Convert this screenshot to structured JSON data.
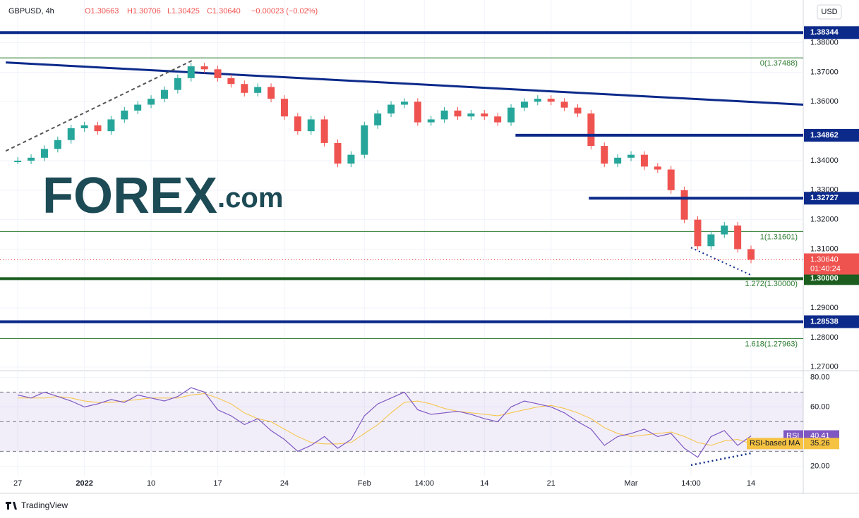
{
  "header": {
    "symbol": "GBPUSD, 4h",
    "open": "O1.30663",
    "high": "H1.30706",
    "low": "L1.30425",
    "close": "C1.30640",
    "change": "−0.00023 (−0.02%)"
  },
  "currency": "USD",
  "logo": {
    "brand": "FOREX",
    "suffix": ".com"
  },
  "footer": "TradingView",
  "chart_data": [
    {
      "type": "candlestick",
      "x": [
        0,
        6,
        12,
        18,
        24,
        30,
        36,
        42,
        48,
        54,
        60,
        66,
        72,
        78,
        84,
        90,
        96,
        102,
        108,
        114,
        120,
        126,
        132,
        138,
        144,
        150,
        156,
        162,
        168,
        174,
        180,
        186,
        192,
        198,
        204,
        210,
        216,
        222,
        228,
        234,
        240,
        246,
        252,
        258,
        264,
        270,
        276,
        282,
        288,
        294,
        300,
        306,
        312,
        318,
        324,
        330
      ],
      "series": [
        {
          "name": "GBPUSD",
          "values": [
            1.34,
            1.341,
            1.344,
            1.347,
            1.351,
            1.352,
            1.35,
            1.354,
            1.357,
            1.359,
            1.361,
            1.364,
            1.368,
            1.372,
            1.371,
            1.368,
            1.366,
            1.363,
            1.365,
            1.361,
            1.355,
            1.35,
            1.354,
            1.346,
            1.339,
            1.342,
            1.352,
            1.356,
            1.359,
            1.36,
            1.353,
            1.354,
            1.357,
            1.355,
            1.356,
            1.355,
            1.353,
            1.358,
            1.36,
            1.361,
            1.36,
            1.358,
            1.356,
            1.345,
            1.339,
            1.341,
            1.342,
            1.338,
            1.337,
            1.33,
            1.32,
            1.311,
            1.315,
            1.318,
            1.31,
            1.3064
          ]
        }
      ],
      "up_color": "#26a69a",
      "down_color": "#ef5350",
      "xlim": [
        -8,
        353.5
      ],
      "ylim": [
        1.269,
        1.3945
      ],
      "xticks": [
        {
          "value": 0,
          "label": "27"
        },
        {
          "value": 30,
          "label": "2022"
        },
        {
          "value": 60,
          "label": "10"
        },
        {
          "value": 90,
          "label": "17"
        },
        {
          "value": 120,
          "label": "24"
        },
        {
          "value": 156,
          "label": "Feb"
        },
        {
          "value": 183,
          "label": "14:00"
        },
        {
          "value": 210,
          "label": "14"
        },
        {
          "value": 240,
          "label": "21"
        },
        {
          "value": 276,
          "label": "Mar"
        },
        {
          "value": 303,
          "label": "14:00"
        },
        {
          "value": 330,
          "label": "14"
        }
      ],
      "yticks": [
        {
          "value": 1.27,
          "label": "1.27000"
        },
        {
          "value": 1.28,
          "label": "1.28000"
        },
        {
          "value": 1.29,
          "label": "1.29000"
        },
        {
          "value": 1.31,
          "label": "1.31000"
        },
        {
          "value": 1.32,
          "label": "1.32000"
        },
        {
          "value": 1.33,
          "label": "1.33000"
        },
        {
          "value": 1.34,
          "label": "1.34000"
        },
        {
          "value": 1.36,
          "label": "1.36000"
        },
        {
          "value": 1.37,
          "label": "1.37000"
        },
        {
          "value": 1.38,
          "label": "1.38000"
        }
      ],
      "levels": [
        {
          "value": 1.38344,
          "label": "1.38344",
          "color": "#0c2a8a"
        },
        {
          "value": 1.34862,
          "label": "1.34862",
          "color": "#0c2a8a",
          "x_start": 224
        },
        {
          "value": 1.32727,
          "label": "1.32727",
          "color": "#0c2a8a",
          "x_start": 257
        },
        {
          "value": 1.28538,
          "label": "1.28538",
          "color": "#0c2a8a"
        },
        {
          "value": 1.3,
          "label": "1.30000",
          "color": "#1b5e20"
        }
      ],
      "fib_levels": [
        {
          "value": 1.37488,
          "label": "0(1.37488)"
        },
        {
          "value": 1.31601,
          "label": "1(1.31601)"
        },
        {
          "value": 1.3,
          "label": "1.272(1.30000)"
        },
        {
          "value": 1.27963,
          "label": "1.618(1.27963)"
        }
      ],
      "fib_color": "#2e7d32",
      "trendlines": [
        {
          "x": [
            -5.4,
            353.5
          ],
          "y": [
            1.3733,
            1.359
          ],
          "color": "#0c2a8a",
          "style": "solid"
        },
        {
          "x": [
            -5.4,
            79.4
          ],
          "y": [
            1.3433,
            1.3743
          ],
          "color": "#555555",
          "style": "dashed"
        },
        {
          "x": [
            303,
            330
          ],
          "y": [
            1.3105,
            1.3012
          ],
          "color": "#0c2a8a",
          "style": "dotted"
        }
      ],
      "last_price": {
        "value": 1.3064,
        "label": "1.30640",
        "countdown": "01:40:24",
        "color": "#ef5350"
      }
    },
    {
      "type": "line",
      "x": [
        0,
        6,
        12,
        18,
        24,
        30,
        36,
        42,
        48,
        54,
        60,
        66,
        72,
        78,
        84,
        90,
        96,
        102,
        108,
        114,
        120,
        126,
        132,
        138,
        144,
        150,
        156,
        162,
        168,
        174,
        180,
        186,
        192,
        198,
        204,
        210,
        216,
        222,
        228,
        234,
        240,
        246,
        252,
        258,
        264,
        270,
        276,
        282,
        288,
        294,
        300,
        306,
        312,
        318,
        324,
        330
      ],
      "series": [
        {
          "name": "RSI",
          "color": "#7e57c2",
          "last_value_label": "40.41",
          "values": [
            68,
            66,
            70,
            67,
            64,
            60,
            62,
            65,
            63,
            68,
            66,
            64,
            67,
            73,
            70,
            58,
            54,
            48,
            52,
            44,
            38,
            30,
            34,
            40,
            32,
            38,
            54,
            62,
            66,
            70,
            58,
            55,
            56,
            57,
            55,
            52,
            50,
            60,
            64,
            62,
            60,
            56,
            50,
            45,
            34,
            40,
            42,
            45,
            40,
            42,
            32,
            26,
            40,
            44,
            34,
            40.41
          ]
        },
        {
          "name": "RSI-based MA",
          "color": "#f5c242",
          "last_value_label": "35.26",
          "values": [
            66,
            66,
            66,
            67,
            66,
            64,
            63,
            63,
            64,
            65,
            66,
            66,
            66,
            68,
            69,
            66,
            62,
            56,
            52,
            50,
            45,
            40,
            36,
            35,
            35,
            36,
            42,
            48,
            56,
            63,
            64,
            62,
            59,
            57,
            56,
            55,
            54,
            56,
            58,
            60,
            61,
            59,
            56,
            52,
            46,
            42,
            40,
            41,
            42,
            43,
            40,
            36,
            34,
            37,
            38,
            35.26
          ]
        }
      ],
      "xlim": [
        -8,
        353.5
      ],
      "ylim": [
        13.5,
        83.5
      ],
      "yticks": [
        {
          "value": 20,
          "label": "20.00"
        },
        {
          "value": 60,
          "label": "60.00"
        },
        {
          "value": 80,
          "label": "80.00"
        }
      ],
      "band": [
        30,
        70
      ],
      "midline": 50,
      "band_color": "#7e57c2",
      "trendlines": [
        {
          "x": [
            303,
            330
          ],
          "y": [
            20.7,
            28.7
          ],
          "color": "#0c2a8a",
          "style": "dotted"
        }
      ]
    }
  ]
}
